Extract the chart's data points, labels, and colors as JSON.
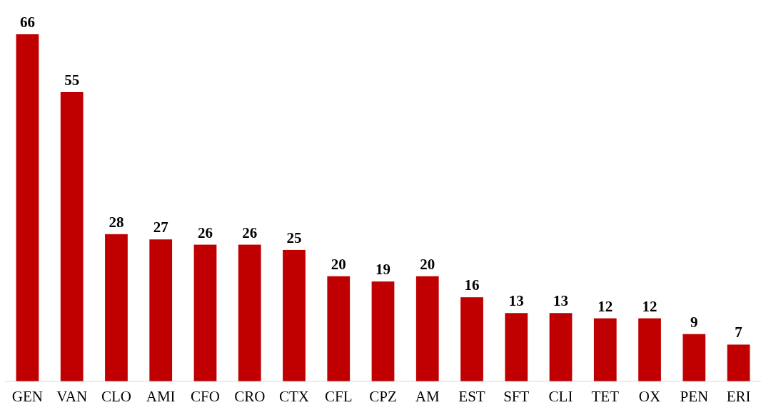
{
  "chart_data": {
    "type": "bar",
    "categories": [
      "GEN",
      "VAN",
      "CLO",
      "AMI",
      "CFO",
      "CRO",
      "CTX",
      "CFL",
      "CPZ",
      "AM",
      "EST",
      "SFT",
      "CLI",
      "TET",
      "OX",
      "PEN",
      "ERI"
    ],
    "values": [
      66,
      55,
      28,
      27,
      26,
      26,
      25,
      20,
      19,
      20,
      16,
      13,
      13,
      12,
      12,
      9,
      7
    ],
    "color": "#c00000",
    "data_labels": true
  }
}
